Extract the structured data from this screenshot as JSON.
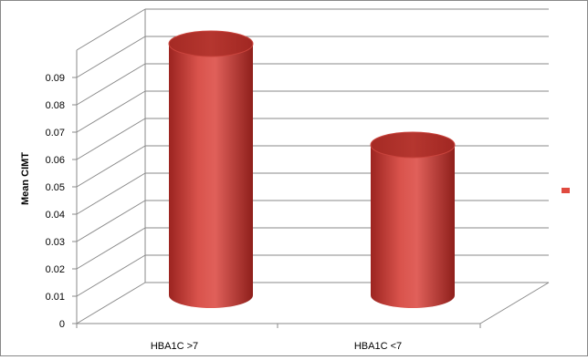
{
  "chart_data": {
    "type": "bar",
    "style": "3d-cylinder",
    "title": "",
    "xlabel": "",
    "ylabel": "Mean CIMT",
    "categories": [
      "HBA1C >7",
      "HBA1C <7"
    ],
    "series": [
      {
        "values": [
          0.092,
          0.055
        ],
        "color": "#c0392b"
      }
    ],
    "ylim": [
      0,
      0.09
    ],
    "yticks": [
      "0",
      "0.01",
      "0.02",
      "0.03",
      "0.04",
      "0.05",
      "0.06",
      "0.07",
      "0.08",
      "0.09"
    ],
    "grid": true,
    "legend_position": "right",
    "legend_marker_color": "#e04a3f"
  }
}
